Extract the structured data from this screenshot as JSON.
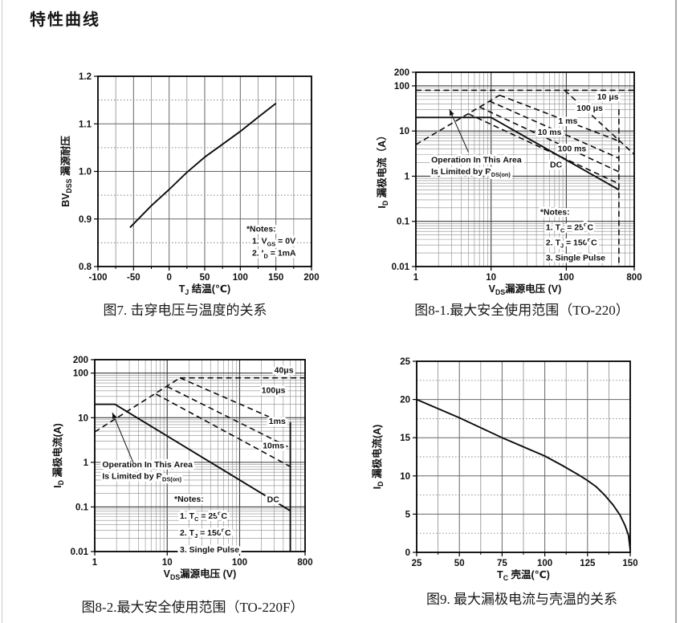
{
  "page": {
    "title": "特性曲线"
  },
  "chart_data": [
    {
      "id": "fig7",
      "type": "line",
      "caption": "图7. 击穿电压与温度的关系",
      "x": {
        "scale": "linear",
        "min": -100,
        "max": 200,
        "label": "T_{J} 结温(℃)",
        "ticks": [
          {
            "v": -100,
            "l": "-100"
          },
          {
            "v": -50,
            "l": "-50"
          },
          {
            "v": 0,
            "l": "0"
          },
          {
            "v": 50,
            "l": "50"
          },
          {
            "v": 100,
            "l": "100"
          },
          {
            "v": 150,
            "l": "150"
          },
          {
            "v": 200,
            "l": "200"
          }
        ]
      },
      "y": {
        "scale": "linear",
        "min": 0.8,
        "max": 1.2,
        "label": "BV_{DSS} 漏源耐压",
        "ticks": [
          {
            "v": 1.2,
            "l": "1.2"
          },
          {
            "v": 1.1,
            "l": "1.1"
          },
          {
            "v": 1.0,
            "l": "1.0"
          },
          {
            "v": 0.9,
            "l": "0.9"
          },
          {
            "v": 0.8,
            "l": "0.8"
          }
        ]
      },
      "series": [
        {
          "name": "bvdss-curve",
          "style": "solid",
          "points": [
            [
              -55,
              0.882
            ],
            [
              -25,
              0.928
            ],
            [
              0,
              0.962
            ],
            [
              25,
              0.998
            ],
            [
              50,
              1.03
            ],
            [
              75,
              1.057
            ],
            [
              100,
              1.084
            ],
            [
              125,
              1.114
            ],
            [
              150,
              1.143
            ]
          ]
        }
      ],
      "curve_labels": [],
      "annotations": [],
      "notes": {
        "x": 108.6,
        "y": 0.873,
        "lines": [
          "*Notes:",
          "1. V_{GS} = 0V",
          "2. I_{D} = 1mA"
        ]
      }
    },
    {
      "id": "fig8-1",
      "type": "line",
      "caption": "图8-1.最大安全使用范围（TO-220）",
      "x": {
        "scale": "log",
        "min": 1,
        "max": 800,
        "label": "V_{DS}漏源电压 (V)",
        "ticks": [
          {
            "v": 1,
            "l": "1"
          },
          {
            "v": 10,
            "l": "10"
          },
          {
            "v": 100,
            "l": "100"
          },
          {
            "v": 800,
            "l": "800"
          }
        ]
      },
      "y": {
        "scale": "log",
        "min": 0.01,
        "max": 200,
        "label": "I_{D} 漏极电流（A）",
        "ticks": [
          {
            "v": 200,
            "l": "200"
          },
          {
            "v": 100,
            "l": "100"
          },
          {
            "v": 10,
            "l": "10"
          },
          {
            "v": 1,
            "l": "1"
          },
          {
            "v": 0.1,
            "l": "0.1"
          },
          {
            "v": 0.01,
            "l": "0.01"
          }
        ]
      },
      "series": [
        {
          "name": "pulse-10us",
          "style": "dashed",
          "points": [
            [
              1,
              80
            ],
            [
              800,
              80
            ]
          ]
        },
        {
          "name": "pulse-10us-descent",
          "style": "dashed",
          "points": [
            [
              95,
              80
            ],
            [
              790,
              3.1
            ]
          ]
        },
        {
          "name": "rdson-limit-line",
          "style": "dashed",
          "points": [
            [
              1,
              5
            ],
            [
              13,
              62
            ]
          ]
        },
        {
          "name": "pulse-100us",
          "style": "dashed",
          "points": [
            [
              13,
              62
            ],
            [
              500,
              6
            ]
          ]
        },
        {
          "name": "pulse-1ms",
          "style": "dashed",
          "points": [
            [
              9.5,
              46
            ],
            [
              500,
              2.5
            ]
          ]
        },
        {
          "name": "pulse-10ms",
          "style": "dashed",
          "points": [
            [
              7,
              34
            ],
            [
              500,
              1.25
            ]
          ]
        },
        {
          "name": "pulse-100ms",
          "style": "dashed",
          "points": [
            [
              5,
              24
            ],
            [
              500,
              0.68
            ]
          ]
        },
        {
          "name": "dc-line",
          "style": "solid",
          "points": [
            [
              1,
              20
            ],
            [
              10,
              20
            ],
            [
              500,
              0.5
            ]
          ]
        },
        {
          "name": "voltage-boundary",
          "style": "dashed",
          "points": [
            [
              500,
              30
            ],
            [
              500,
              0.01
            ]
          ]
        }
      ],
      "curve_labels": [
        {
          "text": "10 μs",
          "x": 357,
          "y": 58
        },
        {
          "text": "100 μs",
          "x": 205,
          "y": 33
        },
        {
          "text": "1 ms",
          "x": 105,
          "y": 17
        },
        {
          "text": "10 ms",
          "x": 60,
          "y": 9.6
        },
        {
          "text": "100 ms",
          "x": 119,
          "y": 4.2
        },
        {
          "text": "DC",
          "x": 73,
          "y": 1.85
        }
      ],
      "annotations": [
        {
          "lines": [
            "Operation In This Area",
            "Is Limited by R_{DS(on)}"
          ],
          "x": 1.6,
          "y": 2.0,
          "arrow": {
            "from": [
              5,
              3.4
            ],
            "to": [
              2.8,
              30
            ]
          }
        }
      ],
      "notes": {
        "x": 45,
        "y": 0.14,
        "lines": [
          "*Notes:",
          "1. T_{C} = 25^{o}C",
          "2. T_{J} = 150^{o}C",
          "3. Single Pulse"
        ]
      }
    },
    {
      "id": "fig8-2",
      "type": "line",
      "caption": "图8-2.最大安全使用范围（TO-220F）",
      "x": {
        "scale": "log",
        "min": 1,
        "max": 800,
        "label": "V_{DS}漏源电压 (V)",
        "ticks": [
          {
            "v": 1,
            "l": "1"
          },
          {
            "v": 10,
            "l": "10"
          },
          {
            "v": 100,
            "l": "100"
          },
          {
            "v": 800,
            "l": "800"
          }
        ]
      },
      "y": {
        "scale": "log",
        "min": 0.01,
        "max": 200,
        "label": "I_{D} 漏极电流(A)",
        "ticks": [
          {
            "v": 200,
            "l": "200"
          },
          {
            "v": 100,
            "l": "100"
          },
          {
            "v": 10,
            "l": "10"
          },
          {
            "v": 1,
            "l": "1"
          },
          {
            "v": 0.1,
            "l": "0.1"
          },
          {
            "v": 0.01,
            "l": "0.01"
          }
        ]
      },
      "series": [
        {
          "name": "pulse-40us",
          "style": "dashed",
          "points": [
            [
              15,
              78
            ],
            [
              790,
              78
            ]
          ]
        },
        {
          "name": "rdson-limit-line",
          "style": "dashed",
          "points": [
            [
              1,
              4.8
            ],
            [
              15,
              78
            ]
          ]
        },
        {
          "name": "pulse-100us",
          "style": "dashed",
          "points": [
            [
              15,
              78
            ],
            [
              500,
              6.5
            ]
          ]
        },
        {
          "name": "pulse-1ms",
          "style": "dashed",
          "points": [
            [
              10,
              50
            ],
            [
              500,
              2.1
            ]
          ]
        },
        {
          "name": "pulse-10ms",
          "style": "dashed",
          "points": [
            [
              7,
              34
            ],
            [
              500,
              0.8
            ]
          ]
        },
        {
          "name": "dc-line",
          "style": "solid",
          "points": [
            [
              1,
              20
            ],
            [
              1.9,
              20
            ],
            [
              500,
              0.082
            ]
          ]
        },
        {
          "name": "voltage-boundary",
          "style": "solid",
          "points": [
            [
              500,
              8
            ],
            [
              500,
              0.01
            ]
          ]
        }
      ],
      "curve_labels": [
        {
          "text": "40μs",
          "x": 408,
          "y": 118
        },
        {
          "text": "100μs",
          "x": 293,
          "y": 42
        },
        {
          "text": "1ms",
          "x": 330,
          "y": 8.5
        },
        {
          "text": "10ms",
          "x": 293,
          "y": 2.4
        },
        {
          "text": "DC",
          "x": 290,
          "y": 0.15
        }
      ],
      "annotations": [
        {
          "lines": [
            "Operation In This Area",
            "Is Limited by R_{DS(on)}"
          ],
          "x": 1.27,
          "y": 0.78,
          "arrow": {
            "from": [
              3.4,
              0.98
            ],
            "to": [
              1.75,
              13
            ]
          }
        }
      ],
      "notes": {
        "x": 12.5,
        "y": 0.13,
        "lines": [
          "*Notes:",
          "1. T_{C} = 25^{o}C",
          "2. T_{J} = 150^{o}C",
          "3. Single Pulse"
        ]
      }
    },
    {
      "id": "fig9",
      "type": "line",
      "caption": "图9. 最大漏极电流与壳温的关系",
      "x": {
        "scale": "linear",
        "min": 25,
        "max": 150,
        "label": "T_{C} 壳温(℃)",
        "ticks": [
          {
            "v": 25,
            "l": "25"
          },
          {
            "v": 50,
            "l": "50"
          },
          {
            "v": 75,
            "l": "75"
          },
          {
            "v": 100,
            "l": "100"
          },
          {
            "v": 125,
            "l": "125"
          },
          {
            "v": 150,
            "l": "150"
          }
        ]
      },
      "y": {
        "scale": "linear",
        "min": 0,
        "max": 25,
        "label": "I_{D} 漏极电流(A)",
        "ticks": [
          {
            "v": 25,
            "l": "25"
          },
          {
            "v": 20,
            "l": "20"
          },
          {
            "v": 15,
            "l": "15"
          },
          {
            "v": 10,
            "l": "10"
          },
          {
            "v": 5,
            "l": "5"
          },
          {
            "v": 0,
            "l": "0"
          }
        ]
      },
      "series": [
        {
          "name": "id-vs-tc-curve",
          "style": "solid",
          "points": [
            [
              25,
              20
            ],
            [
              50,
              17.6
            ],
            [
              75,
              15
            ],
            [
              100,
              12.6
            ],
            [
              110,
              11.4
            ],
            [
              120,
              10.1
            ],
            [
              125,
              9.4
            ],
            [
              130,
              8.6
            ],
            [
              135,
              7.5
            ],
            [
              140,
              6.2
            ],
            [
              144,
              4.9
            ],
            [
              147,
              3.5
            ],
            [
              149,
              2.2
            ],
            [
              150,
              0.3
            ]
          ]
        }
      ],
      "curve_labels": [],
      "annotations": [],
      "notes": null
    }
  ]
}
